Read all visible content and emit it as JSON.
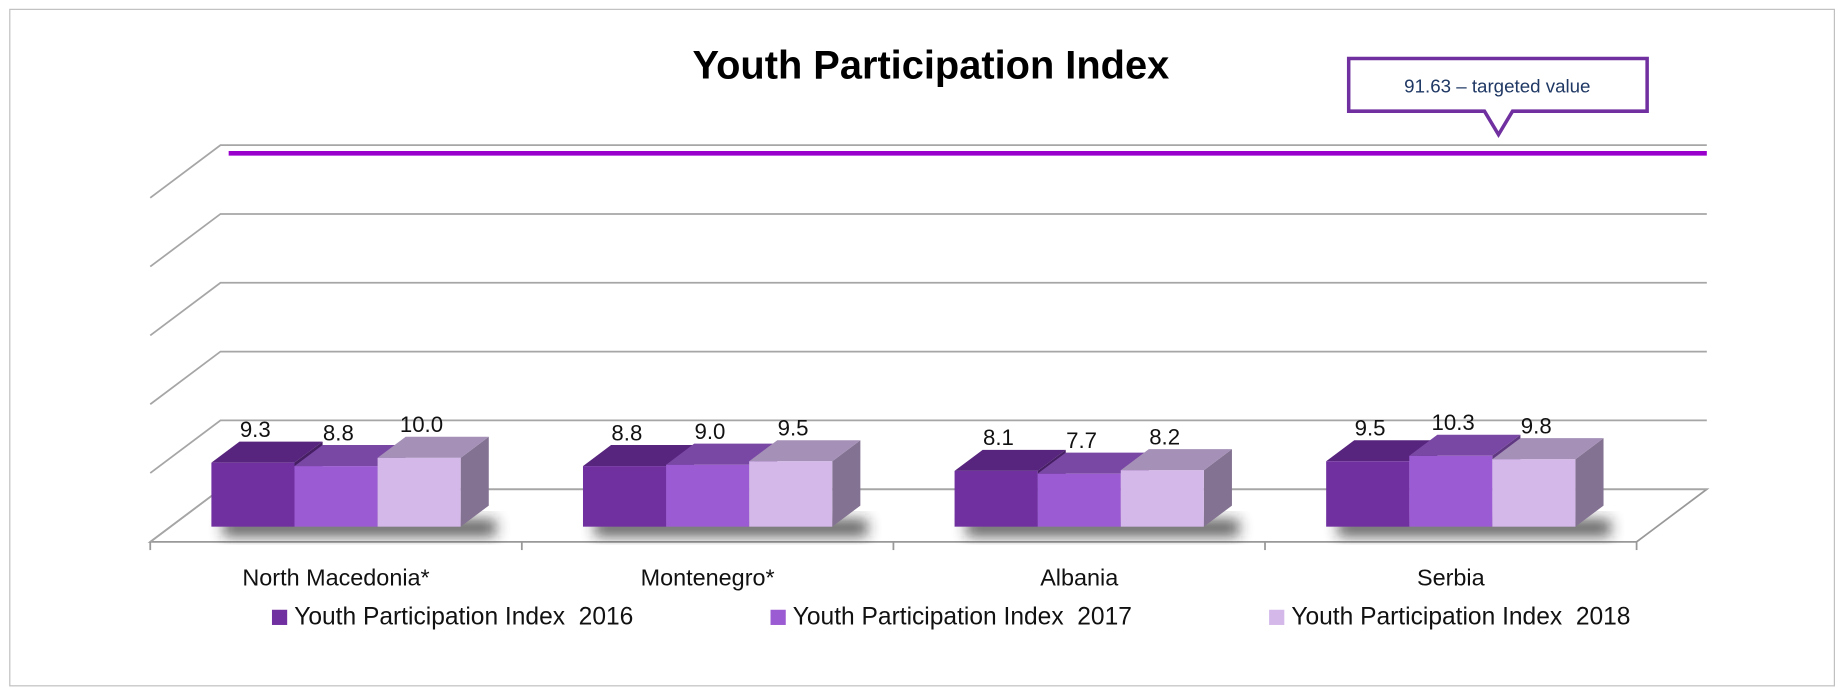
{
  "chart_data": {
    "type": "bar3d",
    "title": "Youth Participation Index",
    "annotation": "91.63 – targeted value",
    "categories": [
      "North Macedonia*",
      "Montenegro*",
      "Albania",
      "Serbia"
    ],
    "series": [
      {
        "name": "Youth Participation Index  2016",
        "color": "#7030a0",
        "values": [
          9.3,
          8.8,
          8.1,
          9.5
        ],
        "value_labels": [
          "9.3",
          "8.8",
          "8.1",
          "9.5"
        ]
      },
      {
        "name": "Youth Participation Index  2017",
        "color": "#9b5bd2",
        "values": [
          8.8,
          9.0,
          7.7,
          10.3
        ],
        "value_labels": [
          "8.8",
          "9.0",
          "7.7",
          "10.3"
        ]
      },
      {
        "name": "Youth Participation Index  2018",
        "color": "#d4b8ea",
        "values": [
          10.0,
          9.5,
          8.2,
          9.8
        ],
        "value_labels": [
          "10.0",
          "9.5",
          "8.2",
          "9.8"
        ]
      }
    ],
    "ylim": [
      0,
      50
    ],
    "yticks": [
      0,
      10,
      20,
      30,
      40,
      50
    ],
    "grid": true,
    "target_color": "#9900cc"
  }
}
